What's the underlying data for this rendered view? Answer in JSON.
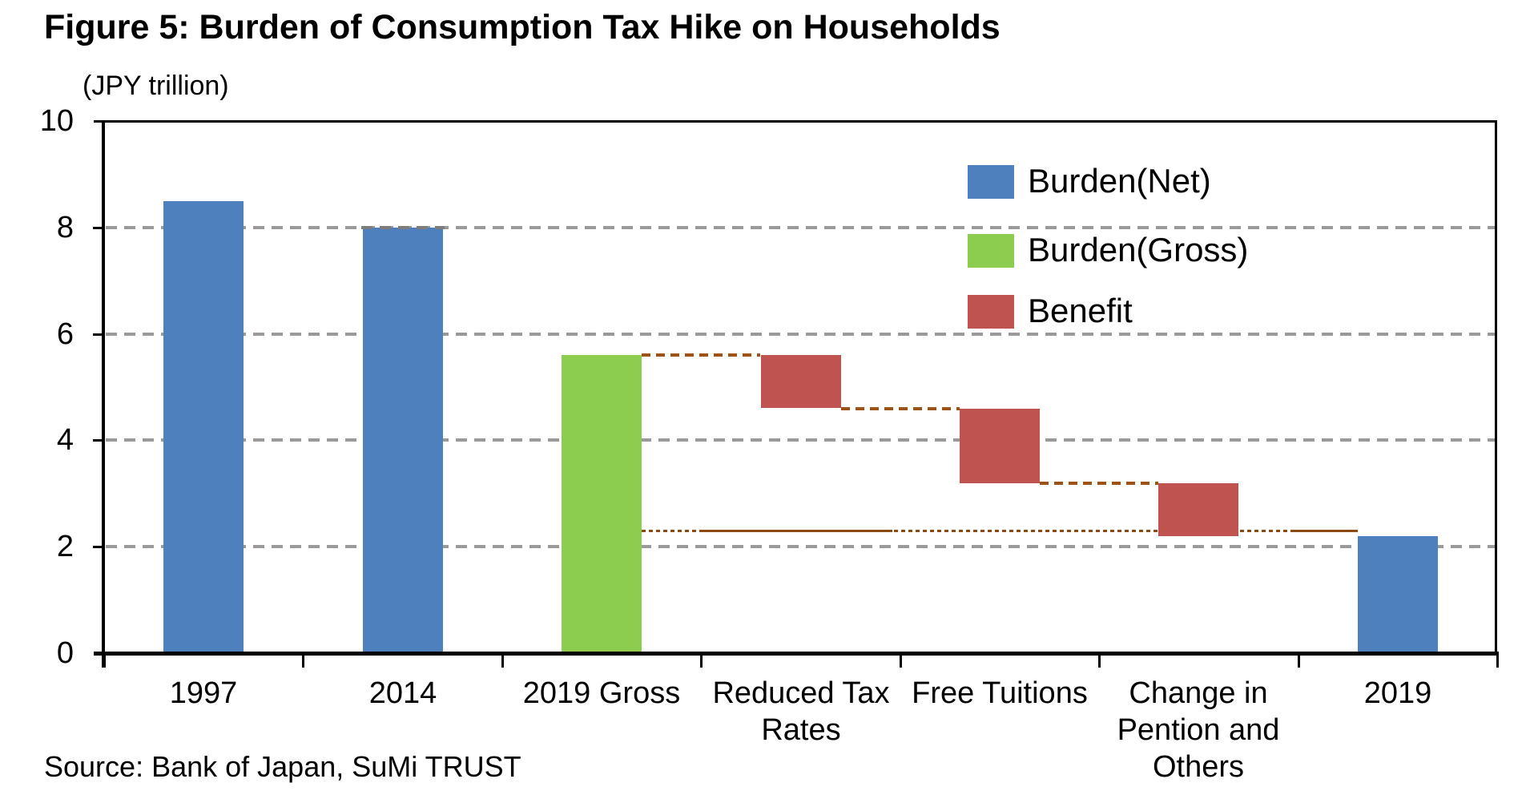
{
  "figure": {
    "title": "Figure 5: Burden of Consumption Tax Hike on Households",
    "unit_label": "(JPY trillion)",
    "source": "Source: Bank of Japan, SuMi TRUST"
  },
  "colors": {
    "burden_net": "#4e80be",
    "burden_gross": "#8ccd50",
    "benefit": "#be534f",
    "gridline": "#9a9a9a",
    "connector": "#9b5318",
    "connector_dark": "#8c4a10",
    "axis": "#000000"
  },
  "legend": [
    {
      "label": "Burden(Net)",
      "color_key": "burden_net"
    },
    {
      "label": "Burden(Gross)",
      "color_key": "burden_gross"
    },
    {
      "label": "Benefit",
      "color_key": "benefit"
    }
  ],
  "chart_data": {
    "type": "bar",
    "subtype": "waterfall",
    "title": "Figure 5: Burden of Consumption Tax Hike on Households",
    "ylabel": "(JPY trillion)",
    "ylim": [
      0,
      10
    ],
    "yticks": [
      0,
      2,
      4,
      6,
      8,
      10
    ],
    "ytick_labels": [
      "0",
      "2",
      "4",
      "6",
      "8",
      "10"
    ],
    "grid_values": [
      2,
      4,
      6,
      8
    ],
    "grid_style": "dashed-gray-horizontal",
    "legend_position": "upper-right-inside",
    "categories": [
      "1997",
      "2014",
      "2019 Gross",
      "Reduced Tax Rates",
      "Free Tuitions",
      "Change in Pention and Others",
      "2019"
    ],
    "xlabel_lines": [
      [
        "1997"
      ],
      [
        "2014"
      ],
      [
        "2019 Gross"
      ],
      [
        "Reduced Tax",
        "Rates"
      ],
      [
        "Free Tuitions"
      ],
      [
        "Change in",
        "Pention and",
        "Others"
      ],
      [
        "2019"
      ]
    ],
    "series_colors": {
      "Burden(Net)": "burden_net",
      "Burden(Gross)": "burden_gross",
      "Benefit": "benefit"
    },
    "bars": [
      {
        "category": "1997",
        "from": 0,
        "to": 8.5,
        "series": "Burden(Net)"
      },
      {
        "category": "2014",
        "from": 0,
        "to": 8.0,
        "series": "Burden(Net)",
        "grid_overlay_at_top": true
      },
      {
        "category": "2019 Gross",
        "from": 0,
        "to": 5.6,
        "series": "Burden(Gross)"
      },
      {
        "category": "Reduced Tax Rates",
        "from": 4.6,
        "to": 5.6,
        "series": "Benefit"
      },
      {
        "category": "Free Tuitions",
        "from": 3.2,
        "to": 4.6,
        "series": "Benefit"
      },
      {
        "category": "Change in Pention and Others",
        "from": 2.2,
        "to": 3.2,
        "series": "Benefit"
      },
      {
        "category": "2019",
        "from": 0,
        "to": 2.2,
        "series": "Burden(Net)"
      }
    ],
    "connectors": [
      {
        "from_cat": 2,
        "to_cat": 3,
        "value": 5.6,
        "style": "dashed"
      },
      {
        "from_cat": 3,
        "to_cat": 4,
        "value": 4.6,
        "style": "dashed"
      },
      {
        "from_cat": 4,
        "to_cat": 5,
        "value": 3.2,
        "style": "dashed"
      },
      {
        "from_cat": 2,
        "to_cat": 6,
        "value": 2.3,
        "style": "dotted",
        "solid_segments": [
          [
            0.08,
            0.35
          ],
          [
            0.91,
            1.0
          ]
        ]
      }
    ]
  }
}
